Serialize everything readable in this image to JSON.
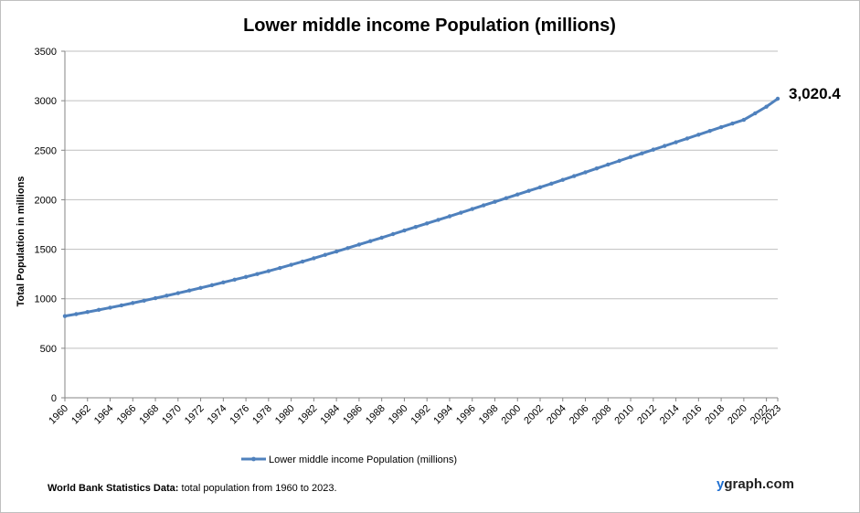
{
  "chart_data": {
    "type": "line",
    "title": "Lower middle income Population (millions)",
    "xlabel": "",
    "ylabel": "Total Population  in millions",
    "ylim": [
      0,
      3500
    ],
    "yticks": [
      0,
      500,
      1000,
      1500,
      2000,
      2500,
      3000,
      3500
    ],
    "x_tick_labels": [
      "1960",
      "1962",
      "1964",
      "1966",
      "1968",
      "1970",
      "1972",
      "1974",
      "1976",
      "1978",
      "1980",
      "1982",
      "1984",
      "1986",
      "1988",
      "1990",
      "1992",
      "1994",
      "1996",
      "1998",
      "2000",
      "2002",
      "2004",
      "2006",
      "2008",
      "2010",
      "2012",
      "2014",
      "2016",
      "2018",
      "2020",
      "2022",
      "2023"
    ],
    "grid": "horizontal",
    "legend_position": "bottom",
    "series": [
      {
        "name": "Lower middle income Population (millions)",
        "color": "#4f81bd",
        "x": [
          1960,
          1961,
          1962,
          1963,
          1964,
          1965,
          1966,
          1967,
          1968,
          1969,
          1970,
          1971,
          1972,
          1973,
          1974,
          1975,
          1976,
          1977,
          1978,
          1979,
          1980,
          1981,
          1982,
          1983,
          1984,
          1985,
          1986,
          1987,
          1988,
          1989,
          1990,
          1991,
          1992,
          1993,
          1994,
          1995,
          1996,
          1997,
          1998,
          1999,
          2000,
          2001,
          2002,
          2003,
          2004,
          2005,
          2006,
          2007,
          2008,
          2009,
          2010,
          2011,
          2012,
          2013,
          2014,
          2015,
          2016,
          2017,
          2018,
          2019,
          2020,
          2021,
          2022,
          2023
        ],
        "values": [
          825,
          845,
          866,
          888,
          910,
          933,
          957,
          981,
          1006,
          1031,
          1057,
          1083,
          1110,
          1137,
          1165,
          1193,
          1221,
          1250,
          1280,
          1311,
          1343,
          1375,
          1409,
          1443,
          1477,
          1512,
          1547,
          1582,
          1617,
          1653,
          1689,
          1725,
          1761,
          1797,
          1833,
          1869,
          1906,
          1943,
          1979,
          2016,
          2053,
          2090,
          2126,
          2163,
          2201,
          2239,
          2277,
          2316,
          2355,
          2393,
          2432,
          2469,
          2506,
          2543,
          2581,
          2619,
          2657,
          2695,
          2733,
          2770,
          2807,
          2873,
          2940,
          3020.4
        ]
      }
    ],
    "end_label": "3,020.4"
  },
  "footer": {
    "source_bold": "World Bank Statistics Data:",
    "source_text": " total population from 1960 to 2023.",
    "brand_y": "y",
    "brand_rest": "graph.com"
  },
  "colors": {
    "line": "#4f81bd",
    "grid": "#bfbfbf",
    "brand_accent": "#1f6fd1"
  }
}
